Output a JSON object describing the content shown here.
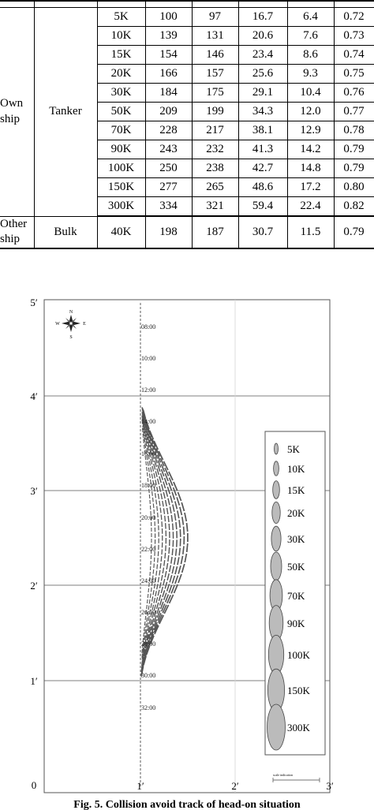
{
  "table": {
    "groups": [
      {
        "owner": "Own ship",
        "type": "Tanker",
        "rows": [
          [
            "5K",
            "100",
            "97",
            "16.7",
            "6.4",
            "0.72"
          ],
          [
            "10K",
            "139",
            "131",
            "20.6",
            "7.6",
            "0.73"
          ],
          [
            "15K",
            "154",
            "146",
            "23.4",
            "8.6",
            "0.74"
          ],
          [
            "20K",
            "166",
            "157",
            "25.6",
            "9.3",
            "0.75"
          ],
          [
            "30K",
            "184",
            "175",
            "29.1",
            "10.4",
            "0.76"
          ],
          [
            "50K",
            "209",
            "199",
            "34.3",
            "12.0",
            "0.77"
          ],
          [
            "70K",
            "228",
            "217",
            "38.1",
            "12.9",
            "0.78"
          ],
          [
            "90K",
            "243",
            "232",
            "41.3",
            "14.2",
            "0.79"
          ],
          [
            "100K",
            "250",
            "238",
            "42.7",
            "14.8",
            "0.79"
          ],
          [
            "150K",
            "277",
            "265",
            "48.6",
            "17.2",
            "0.80"
          ],
          [
            "300K",
            "334",
            "321",
            "59.4",
            "22.4",
            "0.82"
          ]
        ]
      },
      {
        "owner": "Other ship",
        "type": "Bulk",
        "rows": [
          [
            "40K",
            "198",
            "187",
            "30.7",
            "11.5",
            "0.79"
          ]
        ]
      }
    ]
  },
  "figure": {
    "y_ticks": [
      "0",
      "1′",
      "2′",
      "3′",
      "4′",
      "5′"
    ],
    "x_ticks": [
      "1′",
      "2′",
      "3′"
    ],
    "time_labels": [
      "08:00",
      "10:00",
      "12:00",
      "14:00",
      "16:00",
      "18:00",
      "20:00",
      "22:00",
      "24:00",
      "26:00",
      "28:00",
      "30:00",
      "32:00"
    ],
    "compass": {
      "n": "N",
      "s": "S",
      "e": "E",
      "w": "W"
    },
    "legend": [
      "5K",
      "10K",
      "15K",
      "20K",
      "30K",
      "50K",
      "70K",
      "90K",
      "100K",
      "150K",
      "300K"
    ],
    "scale_label": "scale indication",
    "caption": "Fig. 5. Collision avoid track of head-on situation"
  }
}
